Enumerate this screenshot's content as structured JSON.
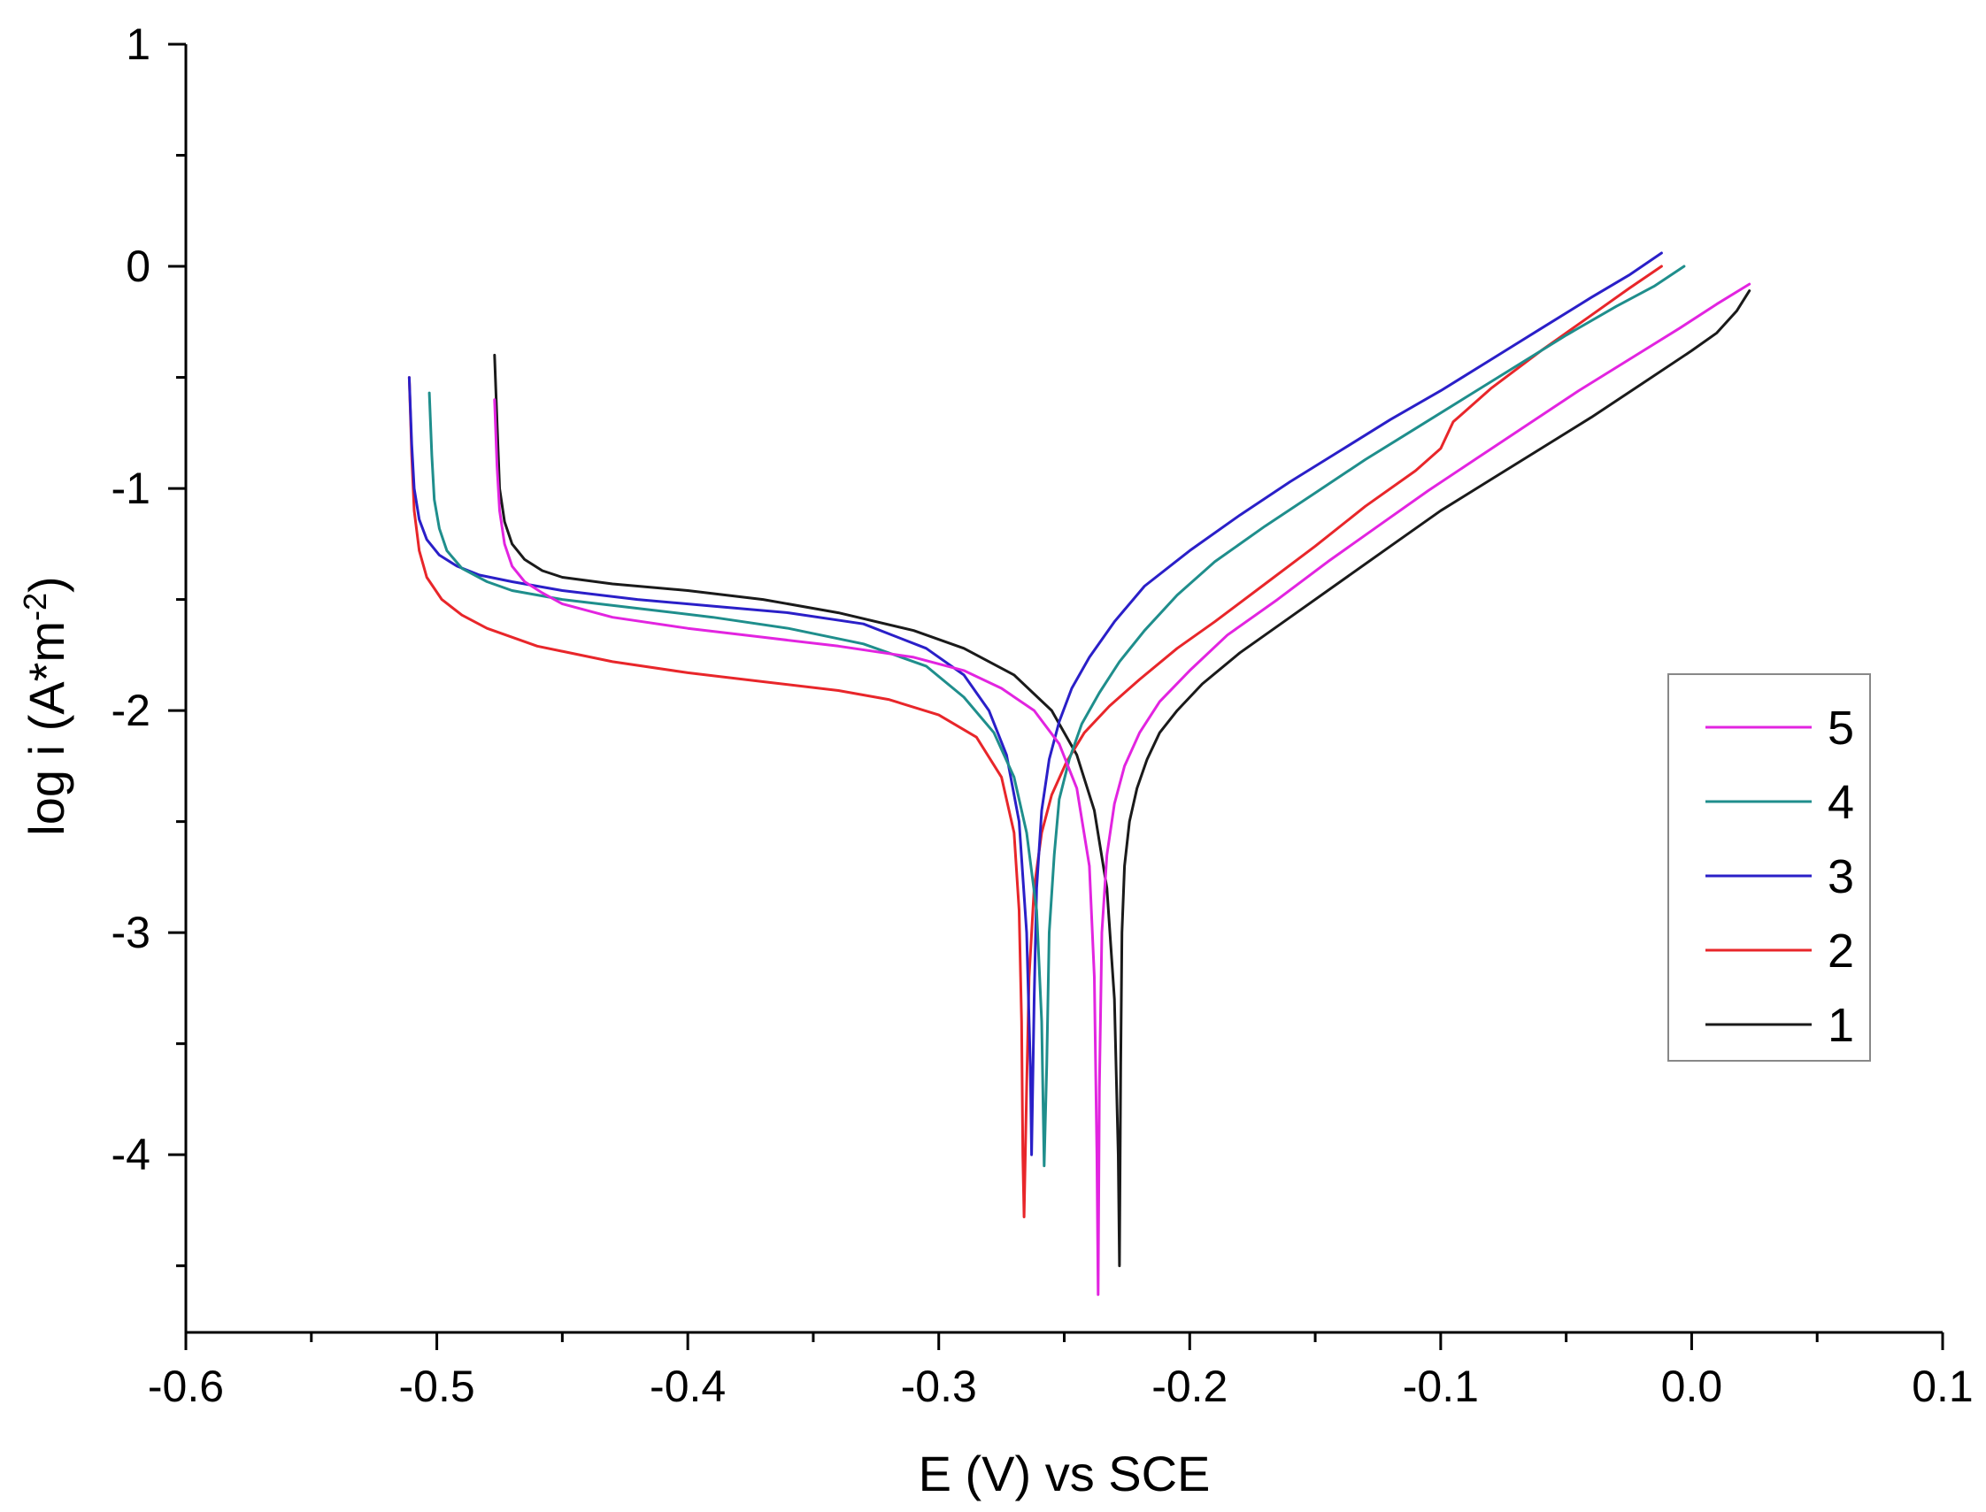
{
  "chart_data": {
    "type": "line",
    "xlabel": "E (V) vs SCE",
    "ylabel_parts": {
      "main": "log i (A*m",
      "sup": "-2",
      "close": ")"
    },
    "xlim": [
      -0.6,
      0.1
    ],
    "ylim": [
      -4.8,
      1.0
    ],
    "xticks": [
      -0.6,
      -0.5,
      -0.4,
      -0.3,
      -0.2,
      -0.1,
      0.0,
      0.1
    ],
    "xtick_labels": [
      "-0.6",
      "-0.5",
      "-0.4",
      "-0.3",
      "-0.2",
      "-0.1",
      "0.0",
      "0.1"
    ],
    "yticks": [
      1,
      0,
      -1,
      -2,
      -3,
      -4
    ],
    "ytick_labels": [
      "1",
      "0",
      "-1",
      "-2",
      "-3",
      "-4"
    ],
    "legend_position": "right",
    "legend_order": [
      "5",
      "4",
      "3",
      "2",
      "1"
    ],
    "series": [
      {
        "name": "1",
        "color": "#1a1a1a",
        "x": [
          -0.477,
          -0.476,
          -0.475,
          -0.473,
          -0.47,
          -0.465,
          -0.458,
          -0.45,
          -0.43,
          -0.4,
          -0.37,
          -0.34,
          -0.31,
          -0.29,
          -0.27,
          -0.255,
          -0.245,
          -0.238,
          -0.233,
          -0.23,
          -0.2285,
          -0.228,
          -0.2275,
          -0.227,
          -0.226,
          -0.224,
          -0.221,
          -0.217,
          -0.212,
          -0.205,
          -0.195,
          -0.18,
          -0.16,
          -0.14,
          -0.12,
          -0.1,
          -0.08,
          -0.06,
          -0.04,
          -0.02,
          0.0,
          0.01,
          0.018,
          0.023
        ],
        "y": [
          -0.4,
          -0.7,
          -1.0,
          -1.15,
          -1.25,
          -1.32,
          -1.37,
          -1.4,
          -1.43,
          -1.46,
          -1.5,
          -1.56,
          -1.64,
          -1.72,
          -1.84,
          -2.0,
          -2.2,
          -2.45,
          -2.8,
          -3.3,
          -4.0,
          -4.5,
          -3.6,
          -3.0,
          -2.7,
          -2.5,
          -2.35,
          -2.22,
          -2.1,
          -2.0,
          -1.88,
          -1.74,
          -1.58,
          -1.42,
          -1.26,
          -1.1,
          -0.96,
          -0.82,
          -0.68,
          -0.53,
          -0.38,
          -0.3,
          -0.2,
          -0.11
        ]
      },
      {
        "name": "2",
        "color": "#e8262a",
        "x": [
          -0.511,
          -0.51,
          -0.509,
          -0.507,
          -0.504,
          -0.498,
          -0.49,
          -0.48,
          -0.46,
          -0.43,
          -0.4,
          -0.37,
          -0.34,
          -0.32,
          -0.3,
          -0.285,
          -0.275,
          -0.27,
          -0.268,
          -0.267,
          -0.2665,
          -0.266,
          -0.265,
          -0.264,
          -0.262,
          -0.259,
          -0.255,
          -0.249,
          -0.242,
          -0.232,
          -0.22,
          -0.205,
          -0.19,
          -0.17,
          -0.15,
          -0.13,
          -0.11,
          -0.1,
          -0.095,
          -0.08,
          -0.06,
          -0.04,
          -0.025,
          -0.012
        ],
        "y": [
          -0.5,
          -0.85,
          -1.1,
          -1.28,
          -1.4,
          -1.5,
          -1.57,
          -1.63,
          -1.71,
          -1.78,
          -1.83,
          -1.87,
          -1.91,
          -1.95,
          -2.02,
          -2.12,
          -2.3,
          -2.55,
          -2.9,
          -3.4,
          -4.0,
          -4.28,
          -3.7,
          -3.2,
          -2.8,
          -2.55,
          -2.38,
          -2.23,
          -2.1,
          -1.98,
          -1.86,
          -1.72,
          -1.6,
          -1.43,
          -1.26,
          -1.08,
          -0.92,
          -0.82,
          -0.7,
          -0.55,
          -0.38,
          -0.22,
          -0.1,
          0.0
        ]
      },
      {
        "name": "3",
        "color": "#2a1fc8",
        "x": [
          -0.511,
          -0.51,
          -0.509,
          -0.507,
          -0.504,
          -0.499,
          -0.492,
          -0.483,
          -0.47,
          -0.45,
          -0.42,
          -0.39,
          -0.36,
          -0.33,
          -0.305,
          -0.29,
          -0.28,
          -0.273,
          -0.268,
          -0.265,
          -0.2635,
          -0.263,
          -0.262,
          -0.261,
          -0.259,
          -0.256,
          -0.252,
          -0.247,
          -0.24,
          -0.23,
          -0.218,
          -0.2,
          -0.18,
          -0.16,
          -0.14,
          -0.12,
          -0.1,
          -0.08,
          -0.06,
          -0.04,
          -0.025,
          -0.012
        ],
        "y": [
          -0.5,
          -0.8,
          -1.0,
          -1.14,
          -1.23,
          -1.3,
          -1.35,
          -1.39,
          -1.42,
          -1.46,
          -1.5,
          -1.53,
          -1.56,
          -1.61,
          -1.72,
          -1.84,
          -2.0,
          -2.2,
          -2.5,
          -3.0,
          -3.6,
          -4.0,
          -3.3,
          -2.8,
          -2.45,
          -2.22,
          -2.05,
          -1.9,
          -1.76,
          -1.6,
          -1.44,
          -1.28,
          -1.12,
          -0.97,
          -0.83,
          -0.69,
          -0.56,
          -0.42,
          -0.28,
          -0.14,
          -0.04,
          0.06
        ]
      },
      {
        "name": "4",
        "color": "#1f8e8c",
        "x": [
          -0.503,
          -0.502,
          -0.501,
          -0.499,
          -0.496,
          -0.49,
          -0.48,
          -0.47,
          -0.45,
          -0.42,
          -0.39,
          -0.36,
          -0.33,
          -0.305,
          -0.29,
          -0.278,
          -0.27,
          -0.265,
          -0.261,
          -0.259,
          -0.258,
          -0.257,
          -0.256,
          -0.254,
          -0.252,
          -0.248,
          -0.243,
          -0.236,
          -0.228,
          -0.218,
          -0.205,
          -0.19,
          -0.17,
          -0.15,
          -0.13,
          -0.11,
          -0.09,
          -0.07,
          -0.05,
          -0.03,
          -0.015,
          -0.003
        ],
        "y": [
          -0.57,
          -0.85,
          -1.05,
          -1.18,
          -1.28,
          -1.36,
          -1.42,
          -1.46,
          -1.5,
          -1.54,
          -1.58,
          -1.63,
          -1.7,
          -1.8,
          -1.94,
          -2.1,
          -2.3,
          -2.55,
          -2.9,
          -3.4,
          -4.05,
          -3.6,
          -3.0,
          -2.65,
          -2.4,
          -2.22,
          -2.06,
          -1.92,
          -1.78,
          -1.64,
          -1.48,
          -1.33,
          -1.17,
          -1.02,
          -0.87,
          -0.73,
          -0.59,
          -0.45,
          -0.31,
          -0.18,
          -0.09,
          0.0
        ]
      },
      {
        "name": "5",
        "color": "#e224e0",
        "x": [
          -0.477,
          -0.476,
          -0.475,
          -0.473,
          -0.47,
          -0.465,
          -0.458,
          -0.45,
          -0.43,
          -0.4,
          -0.37,
          -0.34,
          -0.31,
          -0.29,
          -0.275,
          -0.262,
          -0.252,
          -0.245,
          -0.24,
          -0.238,
          -0.237,
          -0.2365,
          -0.236,
          -0.235,
          -0.233,
          -0.23,
          -0.226,
          -0.22,
          -0.212,
          -0.2,
          -0.185,
          -0.165,
          -0.145,
          -0.125,
          -0.105,
          -0.085,
          -0.065,
          -0.045,
          -0.025,
          -0.005,
          0.01,
          0.023
        ],
        "y": [
          -0.6,
          -0.9,
          -1.1,
          -1.25,
          -1.35,
          -1.42,
          -1.47,
          -1.52,
          -1.58,
          -1.63,
          -1.67,
          -1.71,
          -1.76,
          -1.82,
          -1.9,
          -2.0,
          -2.15,
          -2.35,
          -2.7,
          -3.2,
          -4.0,
          -4.63,
          -3.7,
          -3.0,
          -2.65,
          -2.42,
          -2.25,
          -2.1,
          -1.96,
          -1.82,
          -1.66,
          -1.5,
          -1.33,
          -1.17,
          -1.01,
          -0.86,
          -0.71,
          -0.56,
          -0.42,
          -0.28,
          -0.17,
          -0.08
        ]
      }
    ]
  }
}
